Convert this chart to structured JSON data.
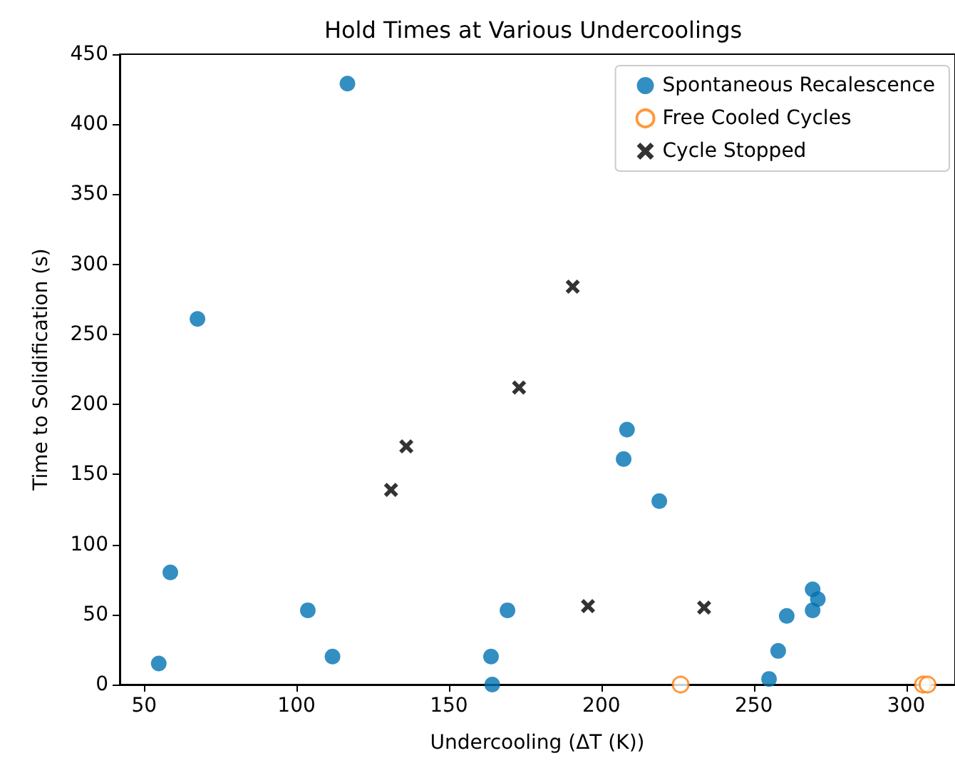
{
  "chart_data": {
    "type": "scatter",
    "title": "Hold Times at Various Undercoolings",
    "xlabel": "Undercooling (ΔT (K))",
    "ylabel": "Time to Solidification (s)",
    "xlim": [
      42,
      316
    ],
    "xticks": [
      50,
      100,
      150,
      200,
      250,
      300
    ],
    "ylim": [
      0,
      450
    ],
    "yticks": [
      0,
      50,
      100,
      150,
      200,
      250,
      300,
      350,
      400,
      450
    ],
    "grid": false,
    "legend": "top right",
    "series": [
      {
        "name": "Spontaneous Recalescence",
        "color": "#0072b2",
        "marker": "circle",
        "x": [
          54.8,
          58.6,
          67.5,
          103.7,
          111.8,
          116.7,
          163.8,
          164.2,
          169.2,
          207.3,
          208.4,
          219,
          255,
          258,
          260.8,
          269.3,
          271,
          269.3
        ],
        "values": [
          15,
          80,
          261,
          53,
          20,
          429,
          20,
          0,
          53,
          161,
          182,
          131,
          4,
          24,
          49,
          68,
          61,
          53
        ]
      },
      {
        "name": "Free Cooled Cycles",
        "color": "#ff7f0e",
        "marker": "circle",
        "x": [
          226,
          305.5,
          307
        ],
        "values": [
          0,
          0,
          0
        ]
      },
      {
        "name": "Cycle Stopped",
        "color": "#000000",
        "marker": "cross",
        "x": [
          131,
          136,
          173,
          190.6,
          195.6,
          233.7
        ],
        "values": [
          139,
          170,
          212,
          284,
          56,
          55
        ]
      }
    ]
  }
}
